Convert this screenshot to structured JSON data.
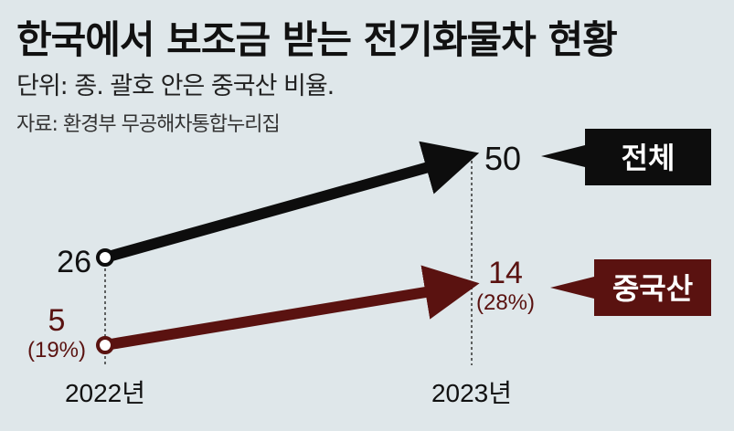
{
  "header": {
    "title": "한국에서 보조금 받는 전기화물차 현황",
    "subtitle": "단위: 종. 괄호 안은 중국산 비율.",
    "source": "자료: 환경부 무공해차통합누리집"
  },
  "colors": {
    "total": "#0d0d0d",
    "china": "#5a1210",
    "background": "#dfe7ea"
  },
  "chart_data": {
    "type": "line",
    "categories": [
      "2022년",
      "2023년"
    ],
    "series": [
      {
        "name": "전체",
        "values": [
          26,
          50
        ],
        "labels": [
          "26",
          "50"
        ]
      },
      {
        "name": "중국산",
        "values": [
          5,
          14
        ],
        "labels": [
          "5",
          "14"
        ],
        "share_labels": [
          "(19%)",
          "(28%)"
        ]
      }
    ]
  }
}
